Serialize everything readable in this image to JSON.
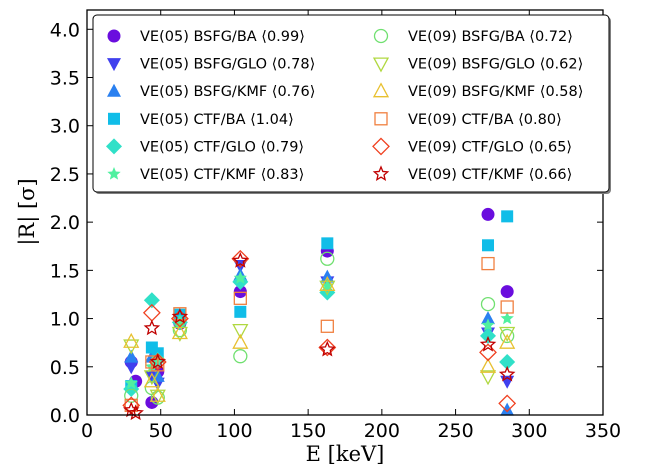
{
  "chart_data": {
    "type": "scatter",
    "xlabel": "E [keV]",
    "ylabel": "|R| [σ]",
    "xlim": [
      0,
      350
    ],
    "ylim": [
      0,
      4.2
    ],
    "xticks": [
      0,
      50,
      100,
      150,
      200,
      250,
      300,
      350
    ],
    "yticks": [
      0.0,
      0.5,
      1.0,
      1.5,
      2.0,
      2.5,
      3.0,
      3.5,
      4.0
    ],
    "xtick_labels": [
      "0",
      "50",
      "100",
      "150",
      "200",
      "250",
      "300",
      "350"
    ],
    "ytick_labels": [
      "0.0",
      "0.5",
      "1.0",
      "1.5",
      "2.0",
      "2.5",
      "3.0",
      "3.5",
      "4.0"
    ],
    "grid": false,
    "legend_position": "top",
    "series": [
      {
        "name": "VE(05) BSFG/BA ⟨0.99⟩",
        "marker": "circle",
        "filled": true,
        "color": "#6a0dde",
        "points": [
          [
            30,
            0.55
          ],
          [
            33,
            0.35
          ],
          [
            44,
            0.13
          ],
          [
            48,
            0.45
          ],
          [
            63,
            0.95
          ],
          [
            104,
            1.28
          ],
          [
            163,
            1.7
          ],
          [
            272,
            2.08
          ],
          [
            285,
            1.28
          ]
        ]
      },
      {
        "name": "VE(05) BSFG/GLO ⟨0.78⟩",
        "marker": "triangle-down",
        "filled": true,
        "color": "#4040ee",
        "points": [
          [
            30,
            0.5
          ],
          [
            44,
            0.4
          ],
          [
            48,
            0.33
          ],
          [
            63,
            0.98
          ],
          [
            104,
            1.55
          ],
          [
            163,
            1.38
          ],
          [
            272,
            0.85
          ],
          [
            285,
            0.35
          ]
        ]
      },
      {
        "name": "VE(05) BSFG/KMF ⟨0.76⟩",
        "marker": "triangle-up",
        "filled": true,
        "color": "#2a80f0",
        "points": [
          [
            30,
            0.6
          ],
          [
            44,
            0.6
          ],
          [
            48,
            0.4
          ],
          [
            63,
            1.0
          ],
          [
            104,
            1.45
          ],
          [
            163,
            1.43
          ],
          [
            272,
            1.0
          ],
          [
            285,
            0.05
          ]
        ]
      },
      {
        "name": "VE(05) CTF/BA ⟨1.04⟩",
        "marker": "square",
        "filled": true,
        "color": "#10bde8",
        "points": [
          [
            30,
            0.3
          ],
          [
            44,
            0.7
          ],
          [
            48,
            0.64
          ],
          [
            63,
            1.04
          ],
          [
            104,
            1.07
          ],
          [
            163,
            1.78
          ],
          [
            272,
            1.76
          ],
          [
            285,
            2.06
          ]
        ]
      },
      {
        "name": "VE(05) CTF/GLO ⟨0.79⟩",
        "marker": "diamond",
        "filled": true,
        "color": "#30e0c8",
        "points": [
          [
            30,
            0.27
          ],
          [
            44,
            1.19
          ],
          [
            48,
            0.57
          ],
          [
            63,
            0.96
          ],
          [
            104,
            1.38
          ],
          [
            163,
            1.27
          ],
          [
            272,
            0.82
          ],
          [
            285,
            0.55
          ]
        ]
      },
      {
        "name": "VE(05) CTF/KMF ⟨0.83⟩",
        "marker": "star",
        "filled": true,
        "color": "#50f0a0",
        "points": [
          [
            30,
            0.33
          ],
          [
            44,
            0.5
          ],
          [
            48,
            0.58
          ],
          [
            63,
            0.96
          ],
          [
            104,
            1.42
          ],
          [
            163,
            1.34
          ],
          [
            272,
            0.93
          ],
          [
            285,
            1.0
          ]
        ]
      },
      {
        "name": "VE(09) BSFG/BA ⟨0.72⟩",
        "marker": "circle",
        "filled": false,
        "color": "#70e070",
        "points": [
          [
            30,
            0.2
          ],
          [
            44,
            0.28
          ],
          [
            48,
            0.18
          ],
          [
            63,
            0.88
          ],
          [
            104,
            0.61
          ],
          [
            163,
            1.62
          ],
          [
            272,
            1.15
          ],
          [
            285,
            0.82
          ]
        ]
      },
      {
        "name": "VE(09) BSFG/GLO ⟨0.62⟩",
        "marker": "triangle-down",
        "filled": false,
        "color": "#b0d840",
        "points": [
          [
            30,
            0.72
          ],
          [
            44,
            0.4
          ],
          [
            48,
            0.2
          ],
          [
            63,
            0.85
          ],
          [
            104,
            0.88
          ],
          [
            163,
            1.33
          ],
          [
            272,
            0.4
          ],
          [
            285,
            0.85
          ]
        ]
      },
      {
        "name": "VE(09) BSFG/KMF ⟨0.58⟩",
        "marker": "triangle-up",
        "filled": false,
        "color": "#e8c030",
        "points": [
          [
            30,
            0.76
          ],
          [
            44,
            0.35
          ],
          [
            48,
            0.2
          ],
          [
            63,
            0.85
          ],
          [
            104,
            0.75
          ],
          [
            163,
            1.35
          ],
          [
            272,
            0.5
          ],
          [
            285,
            0.75
          ]
        ]
      },
      {
        "name": "VE(09) CTF/BA ⟨0.80⟩",
        "marker": "square",
        "filled": false,
        "color": "#f08040",
        "points": [
          [
            30,
            0.1
          ],
          [
            44,
            0.55
          ],
          [
            48,
            0.52
          ],
          [
            63,
            1.05
          ],
          [
            104,
            1.21
          ],
          [
            163,
            0.92
          ],
          [
            272,
            1.57
          ],
          [
            285,
            1.12
          ]
        ]
      },
      {
        "name": "VE(09) CTF/GLO ⟨0.65⟩",
        "marker": "diamond",
        "filled": false,
        "color": "#f04020",
        "points": [
          [
            30,
            0.1
          ],
          [
            44,
            1.06
          ],
          [
            48,
            0.55
          ],
          [
            63,
            1.0
          ],
          [
            104,
            1.62
          ],
          [
            163,
            0.7
          ],
          [
            272,
            0.65
          ],
          [
            285,
            0.12
          ]
        ]
      },
      {
        "name": "VE(09) CTF/KMF ⟨0.66⟩",
        "marker": "star",
        "filled": false,
        "color": "#c00000",
        "points": [
          [
            30,
            0.05
          ],
          [
            33,
            0.02
          ],
          [
            44,
            0.9
          ],
          [
            48,
            0.55
          ],
          [
            63,
            1.02
          ],
          [
            104,
            1.6
          ],
          [
            163,
            0.68
          ],
          [
            272,
            0.73
          ],
          [
            285,
            0.42
          ]
        ]
      }
    ]
  }
}
